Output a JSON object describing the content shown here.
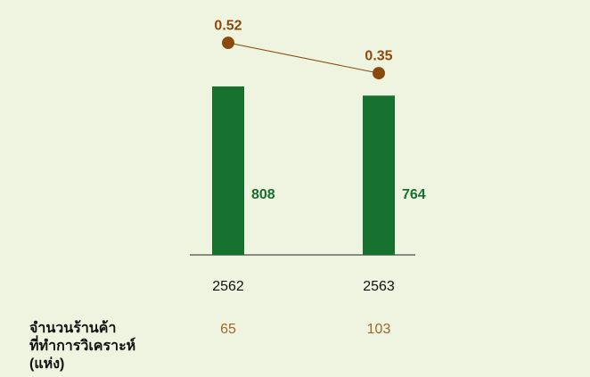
{
  "chart_data": {
    "type": "bar",
    "categories": [
      "2562",
      "2563"
    ],
    "series": [
      {
        "type": "bar",
        "color": "#16702e",
        "values": [
          808,
          764
        ]
      },
      {
        "type": "line",
        "axis": "y2",
        "color": "#8b4a0c",
        "values": [
          0.52,
          0.35
        ]
      }
    ],
    "ylim": [
      0,
      1137
    ],
    "y2lim": [
      -0.668,
      0.66
    ]
  },
  "table": {
    "label": [
      "จำนวนร้านค้า",
      "ที่ทำการวิเคราะห์",
      "(แห่ง)"
    ],
    "values": [
      65,
      103
    ],
    "color": "#a0662a"
  }
}
